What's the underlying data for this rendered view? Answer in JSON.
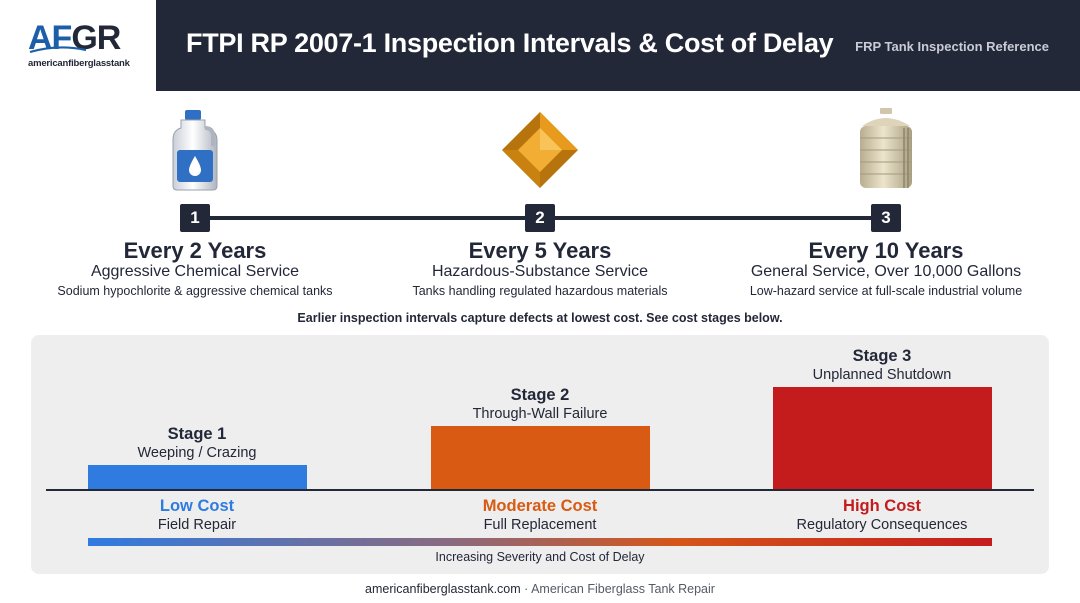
{
  "header": {
    "logo_text": "AFGR",
    "logo_subtext": "americanfiberglasstank",
    "title": "FTPI RP 2007-1 Inspection Intervals & Cost of Delay",
    "reference": "FRP Tank Inspection Reference"
  },
  "timeline": [
    {
      "number": "1",
      "interval": "Every 2 Years",
      "service": "Aggressive Chemical Service",
      "detail": "Sodium hypochlorite & aggressive chemical tanks",
      "icon": "chemical-jug-icon"
    },
    {
      "number": "2",
      "interval": "Every 5 Years",
      "service": "Hazardous-Substance Service",
      "detail": "Tanks handling regulated hazardous materials",
      "icon": "hazard-diamond-icon"
    },
    {
      "number": "3",
      "interval": "Every 10 Years",
      "service": "General Service, Over 10,000 Gallons",
      "detail": "Low-hazard service at full-scale industrial volume",
      "icon": "storage-tank-icon"
    }
  ],
  "note": "Earlier inspection intervals capture defects at lowest cost. See cost stages below.",
  "stages": [
    {
      "name": "Stage 1",
      "description": "Weeping / Crazing",
      "cost_level": "Low Cost",
      "action": "Field Repair",
      "color": "#2f7be0",
      "relative_cost": 1
    },
    {
      "name": "Stage 2",
      "description": "Through-Wall Failure",
      "cost_level": "Moderate Cost",
      "action": "Full Replacement",
      "color": "#d95a12",
      "relative_cost": 2.6
    },
    {
      "name": "Stage 3",
      "description": "Unplanned Shutdown",
      "cost_level": "High Cost",
      "action": "Regulatory Consequences",
      "color": "#c41c1c",
      "relative_cost": 4.2
    }
  ],
  "gradient_caption": "Increasing Severity and Cost of Delay",
  "footer": {
    "site": "americanfiberglasstank.com",
    "separator": " · ",
    "company": "American Fiberglass Tank Repair"
  }
}
